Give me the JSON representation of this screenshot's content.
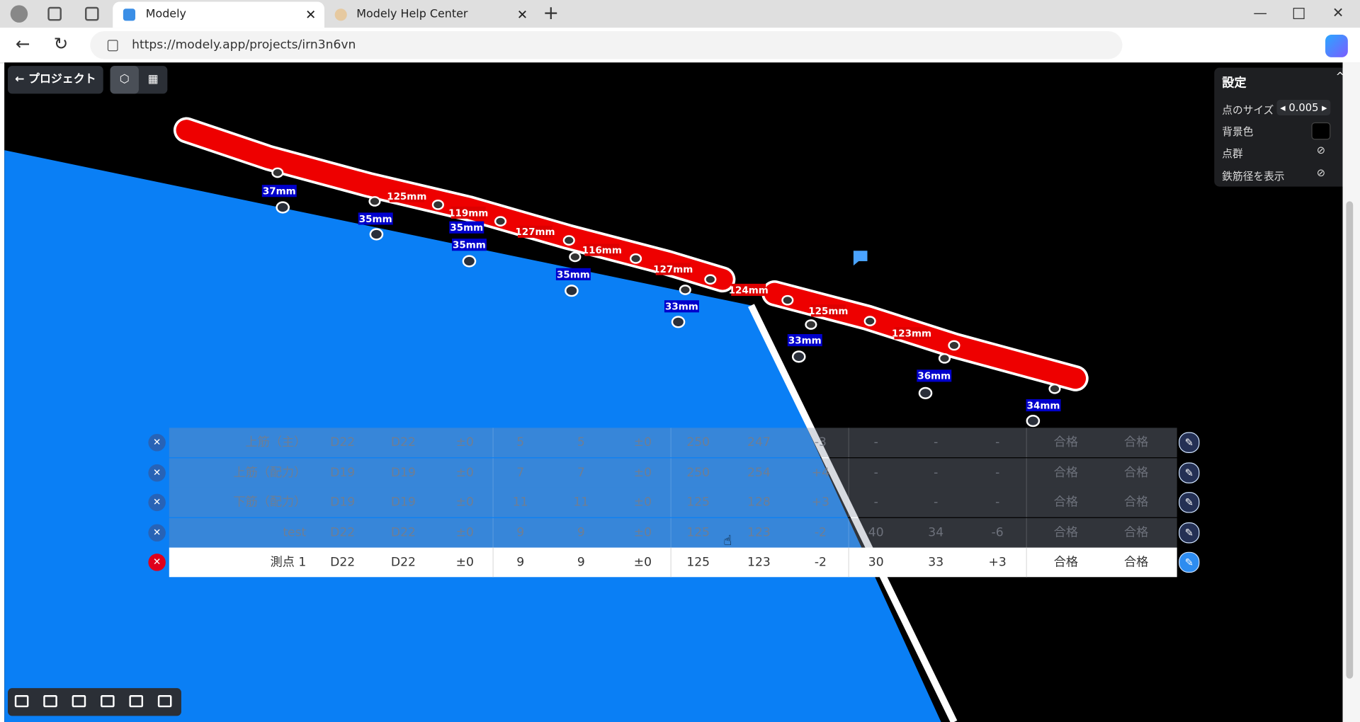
{
  "browser": {
    "tabs": [
      "Modely",
      "Modely Help Center"
    ],
    "url": "https://modely.app/projects/irn3n6vn"
  },
  "toolbar": {
    "back_button": "プロジェクト"
  },
  "settings": {
    "title": "設定",
    "point_size_label": "点のサイズ",
    "point_size_value": "0.005",
    "background_label": "背景色",
    "point_cloud_label": "点群",
    "rebar_diameter_label": "鉄筋径を表示"
  },
  "viewport": {
    "red_labels": [
      "125mm",
      "119mm",
      "127mm",
      "116mm",
      "127mm",
      "124mm",
      "125mm",
      "123mm"
    ],
    "blue_labels": [
      "37mm",
      "35mm",
      "35mm",
      "35mm",
      "35mm",
      "33mm",
      "33mm",
      "36mm",
      "34mm"
    ]
  },
  "table": {
    "rows": [
      [
        "上筋（主）",
        "D22",
        "D22",
        "±0",
        "5",
        "5",
        "±0",
        "250",
        "247",
        "-3",
        "-",
        "-",
        "-",
        "合格",
        "合格"
      ],
      [
        "上筋（配力）",
        "D19",
        "D19",
        "±0",
        "7",
        "7",
        "±0",
        "250",
        "254",
        "+4",
        "-",
        "-",
        "-",
        "合格",
        "合格"
      ],
      [
        "下筋（配力）",
        "D19",
        "D19",
        "±0",
        "11",
        "11",
        "±0",
        "125",
        "128",
        "+3",
        "-",
        "-",
        "-",
        "合格",
        "合格"
      ],
      [
        "test",
        "D22",
        "D22",
        "±0",
        "9",
        "9",
        "±0",
        "125",
        "123",
        "-2",
        "40",
        "34",
        "-6",
        "合格",
        "合格"
      ],
      [
        "測点 1",
        "D22",
        "D22",
        "±0",
        "9",
        "9",
        "±0",
        "125",
        "123",
        "-2",
        "30",
        "33",
        "+3",
        "合格",
        "合格"
      ]
    ]
  }
}
